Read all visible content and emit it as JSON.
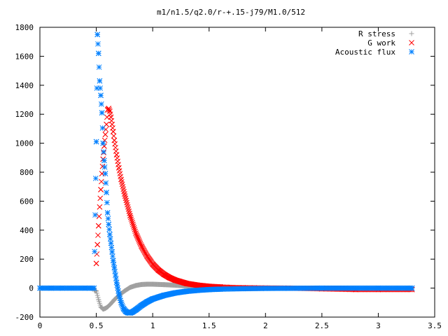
{
  "chart_data": {
    "type": "scatter",
    "title": "m1/n1.5/q2.0/r-+.15-j79/M1.0/512",
    "xlabel": "",
    "ylabel": "",
    "xlim": [
      0,
      3.5
    ],
    "ylim": [
      -200,
      1800
    ],
    "xticks": [
      "0",
      "0.5",
      "1",
      "1.5",
      "2",
      "2.5",
      "3",
      "3.5"
    ],
    "yticks": [
      "-200",
      "0",
      "200",
      "400",
      "600",
      "800",
      "1000",
      "1200",
      "1400",
      "1600",
      "1800"
    ],
    "grid": false,
    "legend_position": "top-right",
    "series": [
      {
        "name": "R stress",
        "marker": "+",
        "color": "#a0a0a0",
        "x": [
          0.0,
          0.25,
          0.45,
          0.5,
          0.52,
          0.54,
          0.56,
          0.58,
          0.6,
          0.62,
          0.64,
          0.66,
          0.7,
          0.75,
          0.8,
          0.85,
          0.9,
          0.95,
          1.0,
          1.1,
          1.2,
          1.3,
          1.4,
          1.5,
          1.6,
          1.8,
          2.0,
          2.5,
          3.0,
          3.3
        ],
        "y": [
          0,
          0,
          0,
          -20,
          -80,
          -130,
          -145,
          -140,
          -130,
          -115,
          -98,
          -80,
          -50,
          -20,
          5,
          18,
          25,
          27,
          27,
          24,
          20,
          15,
          10,
          5,
          2,
          0,
          0,
          0,
          0,
          0
        ]
      },
      {
        "name": "G work",
        "marker": "x",
        "color": "#ff0000",
        "x": [
          0.5,
          0.51,
          0.52,
          0.53,
          0.54,
          0.55,
          0.56,
          0.57,
          0.58,
          0.59,
          0.6,
          0.61,
          0.62,
          0.63,
          0.64,
          0.65,
          0.66,
          0.68,
          0.7,
          0.72,
          0.75,
          0.8,
          0.85,
          0.9,
          0.95,
          1.0,
          1.05,
          1.1,
          1.15,
          1.2,
          1.3,
          1.4,
          1.5,
          1.6,
          1.7,
          1.8,
          1.9,
          2.0,
          2.2,
          2.5,
          2.8,
          3.0,
          3.3
        ],
        "y": [
          170,
          300,
          430,
          560,
          680,
          790,
          890,
          980,
          1060,
          1130,
          1230,
          1240,
          1220,
          1180,
          1130,
          1080,
          1020,
          920,
          830,
          750,
          650,
          500,
          380,
          290,
          220,
          165,
          125,
          95,
          72,
          55,
          32,
          20,
          12,
          8,
          5,
          3,
          2,
          1,
          0,
          -5,
          -10,
          -10,
          -10
        ]
      },
      {
        "name": "Acoustic flux",
        "marker": "*",
        "color": "#0080ff",
        "x": [
          0.0,
          0.1,
          0.2,
          0.3,
          0.4,
          0.48,
          0.5,
          0.51,
          0.52,
          0.53,
          0.54,
          0.55,
          0.56,
          0.57,
          0.58,
          0.59,
          0.6,
          0.61,
          0.62,
          0.63,
          0.64,
          0.65,
          0.66,
          0.67,
          0.68,
          0.7,
          0.72,
          0.74,
          0.76,
          0.78,
          0.8,
          0.82,
          0.85,
          0.9,
          0.95,
          1.0,
          1.1,
          1.2,
          1.3,
          1.4,
          1.5,
          1.6,
          1.8,
          2.0,
          2.5,
          3.0,
          3.3
        ],
        "y": [
          0,
          0,
          0,
          0,
          0,
          0,
          1010,
          1750,
          1620,
          1430,
          1330,
          1210,
          1000,
          880,
          790,
          660,
          520,
          440,
          370,
          310,
          250,
          190,
          140,
          90,
          40,
          -40,
          -100,
          -140,
          -160,
          -170,
          -172,
          -165,
          -150,
          -120,
          -95,
          -75,
          -50,
          -33,
          -22,
          -15,
          -10,
          -7,
          -4,
          -2,
          0,
          0,
          0
        ]
      }
    ]
  }
}
